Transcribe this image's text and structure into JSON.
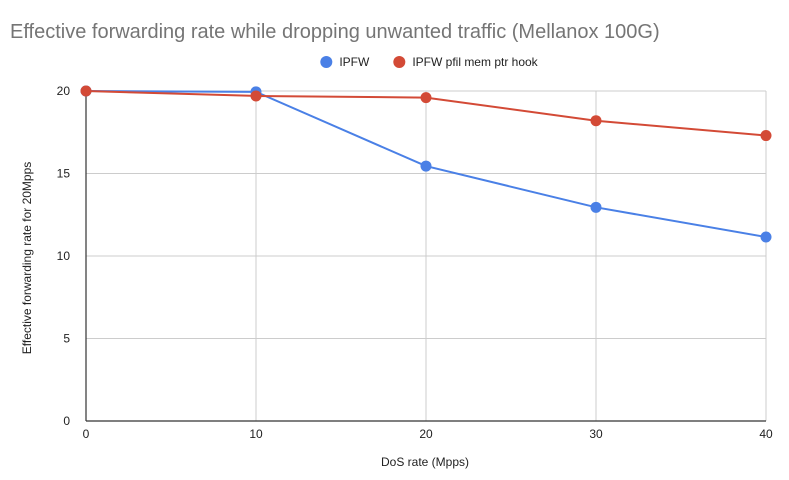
{
  "chart_data": {
    "type": "line",
    "title": "Effective forwarding rate while dropping unwanted traffic (Mellanox 100G)",
    "xlabel": "DoS rate (Mpps)",
    "ylabel": "Effective forwarding rate for 20Mpps",
    "x": [
      0,
      10,
      20,
      30,
      40
    ],
    "x_ticks": [
      "0",
      "10",
      "20",
      "30",
      "40"
    ],
    "y_ticks": [
      "0",
      "5",
      "10",
      "15",
      "20"
    ],
    "xlim": [
      0,
      40
    ],
    "ylim": [
      0,
      20
    ],
    "grid": true,
    "legend_position": "top",
    "series": [
      {
        "name": "IPFW",
        "color": "#4a80e6",
        "values": [
          20,
          19.95,
          15.45,
          12.95,
          11.15
        ]
      },
      {
        "name": "IPFW pfil mem ptr hook",
        "color": "#d34a36",
        "values": [
          20,
          19.7,
          19.6,
          18.2,
          17.3
        ]
      }
    ]
  }
}
